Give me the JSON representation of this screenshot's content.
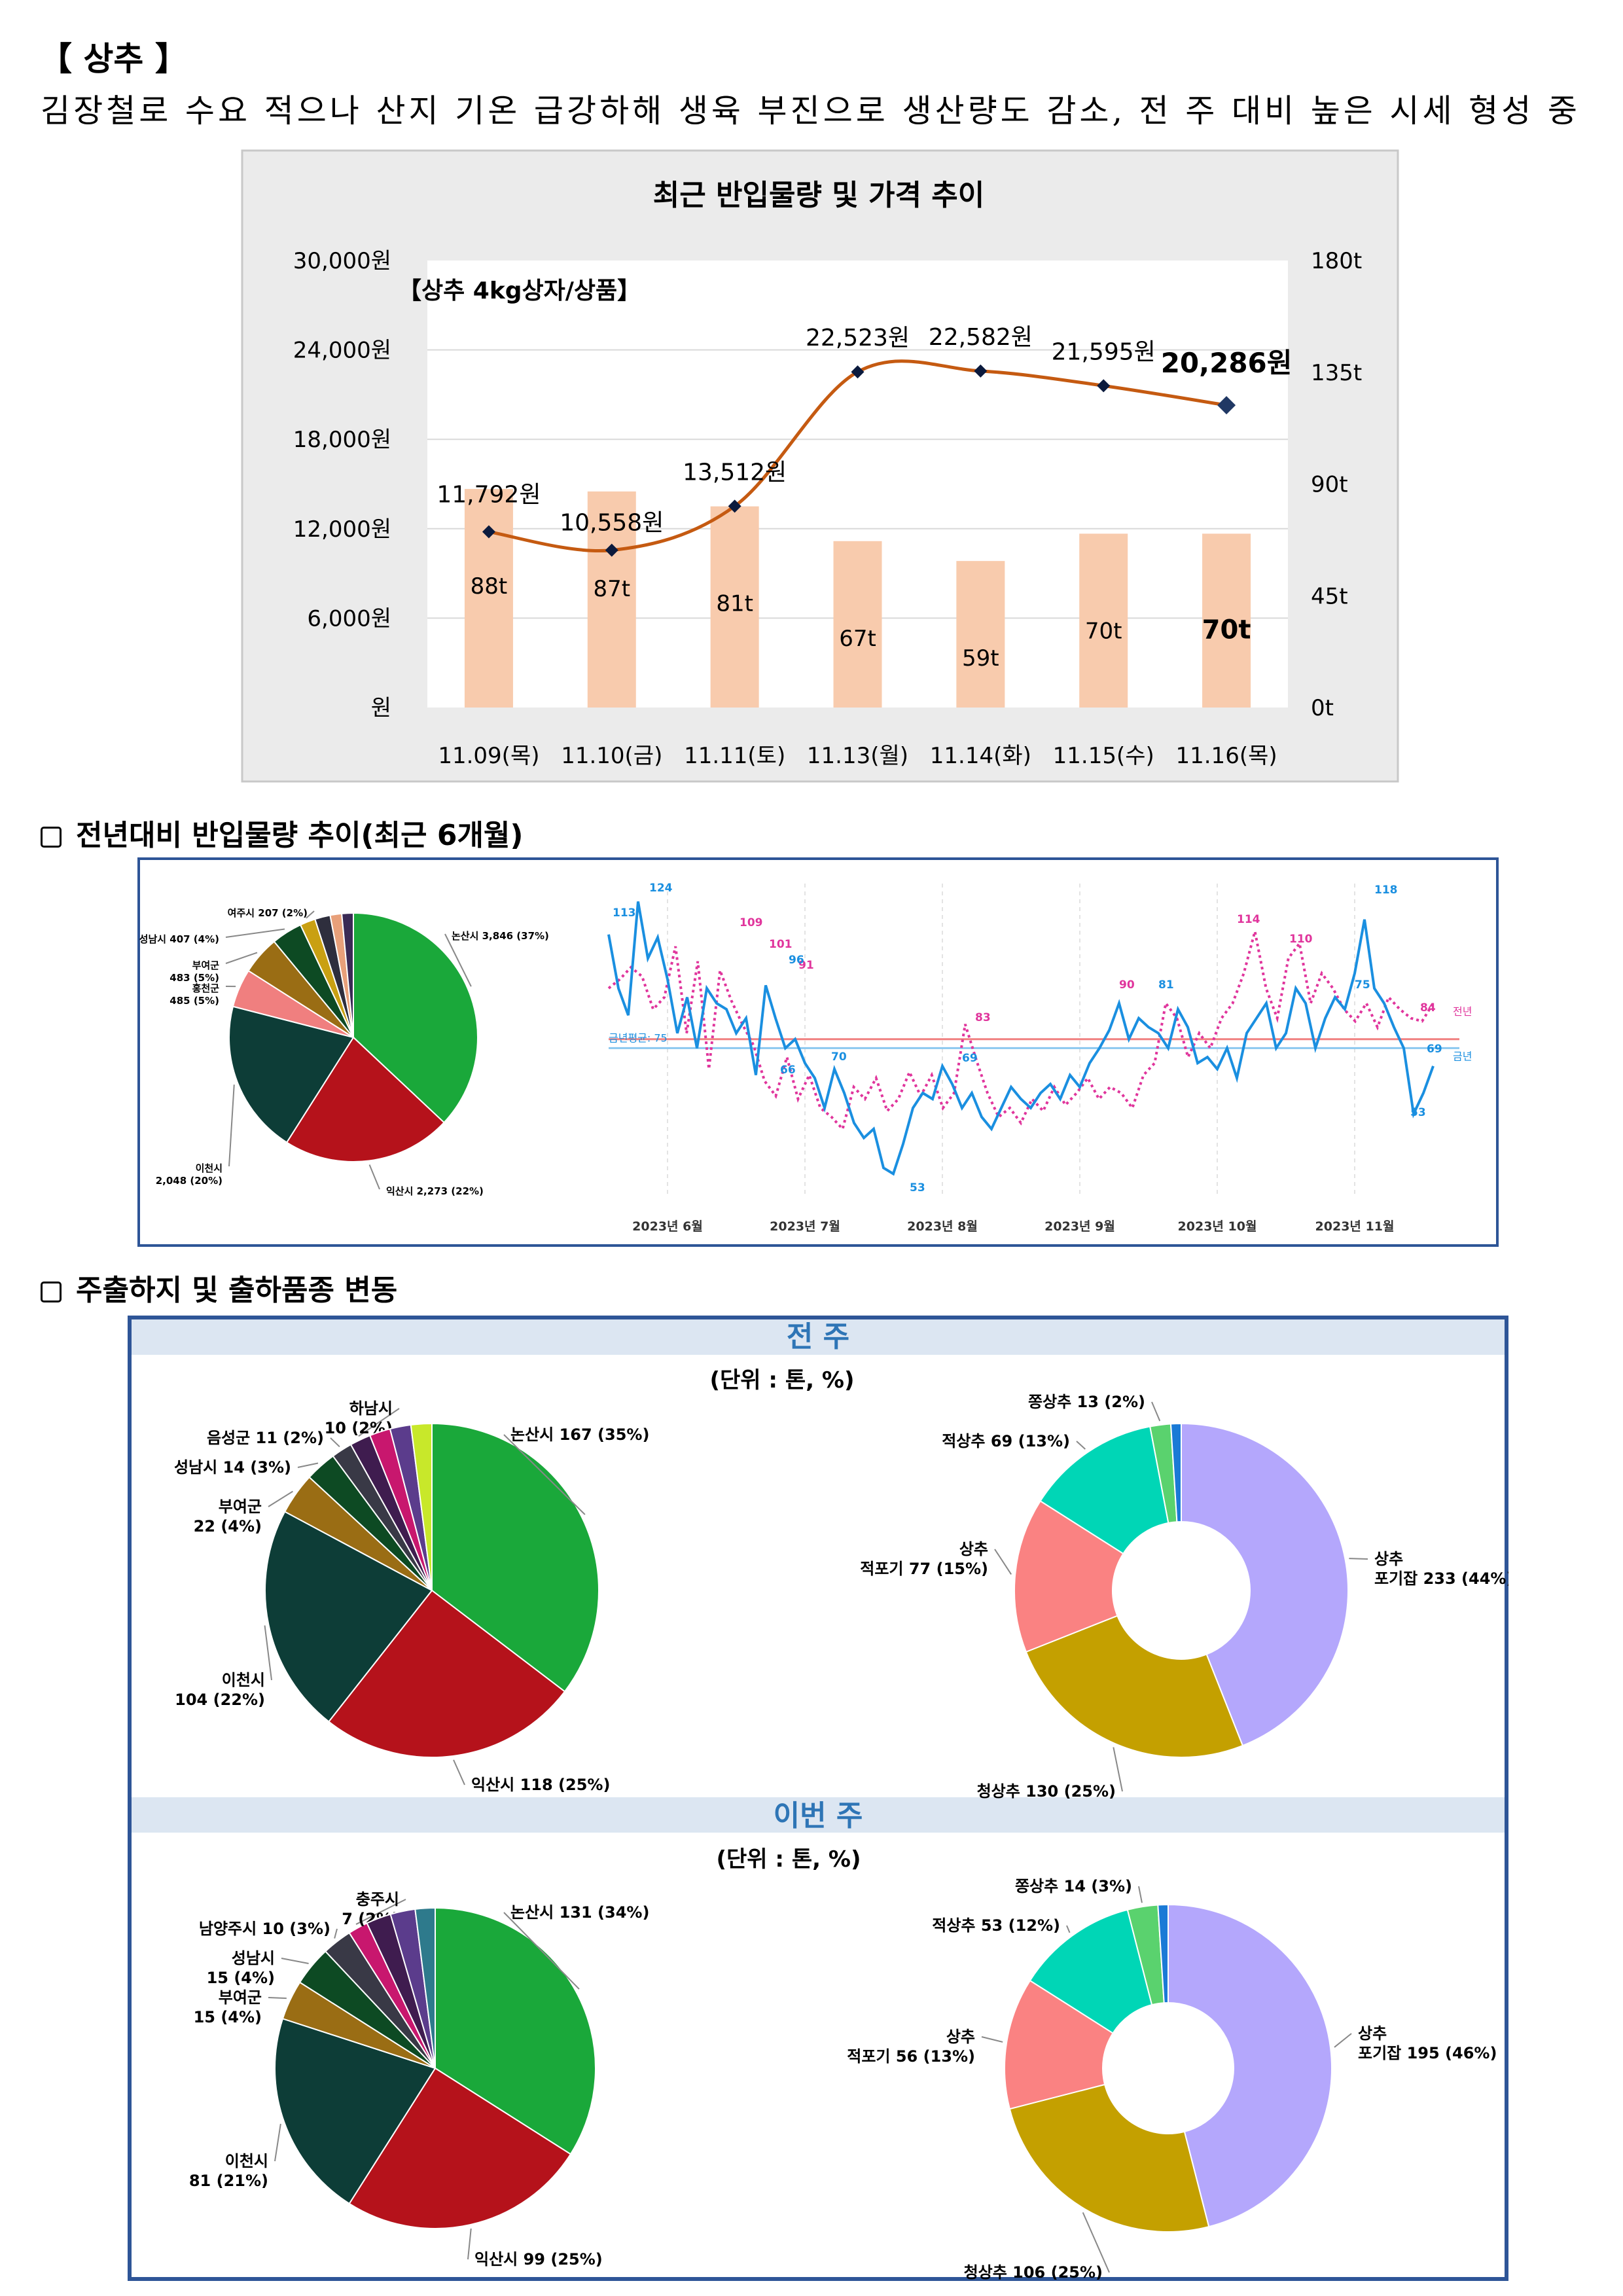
{
  "title": "【 상추 】",
  "summary": "김장철로 수요 적으나 산지 기온 급강하해 생육 부진으로 생산량도 감소, 전 주 대비 높은 시세 형성 중",
  "colors": {
    "bar": "#f8cbad",
    "line": "#c55a11",
    "marker": "#203864",
    "pie_green": "#1aa83a",
    "pie_red": "#b5121b",
    "pie_dark": "#0d3d37",
    "pie_gold": "#9a6d14",
    "this_year": "#1a8fe0",
    "last_year": "#e0359c",
    "frame_blue": "#2e5597"
  },
  "chart1": {
    "title": "최근 반입물량 및 가격 추이",
    "product": "【상추 4kg상자/상품】",
    "chart_data": {
      "type": "bar",
      "categories": [
        "11.09(목)",
        "11.10(금)",
        "11.11(토)",
        "11.13(월)",
        "11.14(화)",
        "11.15(수)",
        "11.16(목)"
      ],
      "series": [
        {
          "name": "",
          "axis": "right",
          "values": [
            88,
            87,
            81,
            67,
            59,
            70,
            70
          ],
          "labels": [
            "88t",
            "87t",
            "81t",
            "67t",
            "59t",
            "70t",
            "70t"
          ]
        },
        {
          "name": "",
          "axis": "left",
          "type": "line",
          "values": [
            11792,
            10558,
            13512,
            22523,
            22582,
            21595,
            20286
          ],
          "labels": [
            "11,792원",
            "10,558원",
            "13,512원",
            "22,523원",
            "22,582원",
            "21,595원",
            "20,286원"
          ]
        }
      ],
      "y_left_ticks": [
        "원",
        "6,000원",
        "12,000원",
        "18,000원",
        "24,000원",
        "30,000원"
      ],
      "ylim_left": [
        0,
        30000
      ],
      "y_right_ticks": [
        "0t",
        "45t",
        "90t",
        "135t",
        "180t"
      ],
      "ylim_right": [
        0,
        180
      ],
      "grid": true
    }
  },
  "section2": {
    "title": "전년대비 반입물량 추이(최근 6개월)",
    "pie": {
      "chart_data": {
        "type": "pie",
        "slices": [
          {
            "label": "논산시 3,846 (37%)",
            "value": 37
          },
          {
            "label": "익산시 2,273 (22%)",
            "value": 22
          },
          {
            "label": "이천시 2,048 (20%)",
            "value": 20
          },
          {
            "label": "홍천군 485 (5%)",
            "value": 5
          },
          {
            "label": "부여군 483 (5%)",
            "value": 5
          },
          {
            "label": "성남시 407 (4%)",
            "value": 4
          },
          {
            "label": "여주시 207 (2%)",
            "value": 2
          },
          {
            "label": "",
            "value": 2
          },
          {
            "label": "",
            "value": 1.5
          },
          {
            "label": "",
            "value": 1.5
          }
        ]
      }
    },
    "line": {
      "chart_data": {
        "type": "line",
        "x_labels": [
          "2023년 6월",
          "2023년 7월",
          "2023년 8월",
          "2023년 9월",
          "2023년 10월",
          "2023년 11월"
        ],
        "series": [
          {
            "name": "금년",
            "values": [
              113,
              95,
              86,
              124,
              105,
              112,
              98,
              80,
              92,
              75,
              95,
              90,
              88,
              80,
              85,
              66,
              96,
              85,
              75,
              78,
              70,
              65,
              55,
              68,
              60,
              50,
              45,
              48,
              35,
              33,
              43,
              55,
              60,
              58,
              69,
              63,
              55,
              60,
              52,
              48,
              55,
              62,
              58,
              55,
              60,
              63,
              58,
              66,
              62,
              70,
              75,
              81,
              90,
              78,
              85,
              82,
              80,
              75,
              88,
              82,
              70,
              72,
              68,
              75,
              65,
              80,
              85,
              90,
              75,
              80,
              95,
              90,
              75,
              85,
              92,
              88,
              100,
              118,
              95,
              90,
              82,
              75,
              53,
              60,
              69
            ]
          },
          {
            "name": "전년",
            "values": [
              95,
              98,
              102,
              99,
              88,
              92,
              109,
              80,
              104,
              68,
              101,
              91,
              83,
              76,
              64,
              59,
              72,
              58,
              66,
              55,
              52,
              48,
              62,
              58,
              65,
              54,
              58,
              67,
              59,
              66,
              55,
              60,
              83,
              71,
              60,
              52,
              55,
              50,
              58,
              54,
              62,
              56,
              60,
              65,
              58,
              62,
              60,
              55,
              66,
              70,
              90,
              85,
              72,
              80,
              75,
              85,
              90,
              100,
              114,
              95,
              85,
              105,
              110,
              90,
              100,
              95,
              88,
              84,
              90,
              82,
              92,
              88,
              85,
              84,
              90
            ]
          }
        ],
        "annotations": [
          "113",
          "124",
          "109",
          "101",
          "91",
          "96",
          "66",
          "70",
          "69",
          "53",
          "83",
          "90",
          "81",
          "114",
          "110",
          "118",
          "75",
          "84",
          "53",
          "69",
          "금년평균: 75",
          "전년",
          "금년"
        ]
      }
    }
  },
  "section3": {
    "title": "주출하지 및 출하품종 변동",
    "prev_week": {
      "header": "전 주",
      "unit": "(단위 : 톤, %)",
      "origin": {
        "chart_data": {
          "type": "pie",
          "slices": [
            {
              "label": "논산시 167 (35%)",
              "value": 35
            },
            {
              "label": "익산시 118 (25%)",
              "value": 25
            },
            {
              "label": "이천시 104 (22%)",
              "value": 22
            },
            {
              "label": "부여군 22 (4%)",
              "value": 4
            },
            {
              "label": "성남시 14 (3%)",
              "value": 3
            },
            {
              "label": "음성군 11 (2%)",
              "value": 2
            },
            {
              "label": "하남시 10 (2%)",
              "value": 2
            },
            {
              "label": "",
              "value": 2
            },
            {
              "label": "",
              "value": 2
            },
            {
              "label": "",
              "value": 2
            }
          ]
        }
      },
      "variety": {
        "chart_data": {
          "type": "pie",
          "slices": [
            {
              "label": "상추 포기잡 233 (44%)",
              "value": 44
            },
            {
              "label": "청상추 130 (25%)",
              "value": 25
            },
            {
              "label": "상추 적포기 77 (15%)",
              "value": 15
            },
            {
              "label": "적상추 69 (13%)",
              "value": 13
            },
            {
              "label": "쫑상추 13 (2%)",
              "value": 2
            },
            {
              "label": "",
              "value": 1
            }
          ]
        }
      }
    },
    "this_week": {
      "header": "이번 주",
      "unit": "(단위 : 톤, %)",
      "origin": {
        "chart_data": {
          "type": "pie",
          "slices": [
            {
              "label": "논산시 131 (34%)",
              "value": 34
            },
            {
              "label": "익산시 99 (25%)",
              "value": 25
            },
            {
              "label": "이천시 81 (21%)",
              "value": 21
            },
            {
              "label": "부여군 15 (4%)",
              "value": 4
            },
            {
              "label": "성남시 15 (4%)",
              "value": 4
            },
            {
              "label": "남양주시 10 (3%)",
              "value": 3
            },
            {
              "label": "충주시 7 (2%)",
              "value": 2
            },
            {
              "label": "",
              "value": 2.5
            },
            {
              "label": "",
              "value": 2.5
            },
            {
              "label": "",
              "value": 2
            }
          ]
        }
      },
      "variety": {
        "chart_data": {
          "type": "pie",
          "slices": [
            {
              "label": "상추 포기잡 195 (46%)",
              "value": 46
            },
            {
              "label": "청상추 106 (25%)",
              "value": 25
            },
            {
              "label": "상추 적포기 56 (13%)",
              "value": 13
            },
            {
              "label": "적상추 53 (12%)",
              "value": 12
            },
            {
              "label": "쫑상추 14 (3%)",
              "value": 3
            },
            {
              "label": "",
              "value": 1
            }
          ]
        }
      }
    }
  }
}
